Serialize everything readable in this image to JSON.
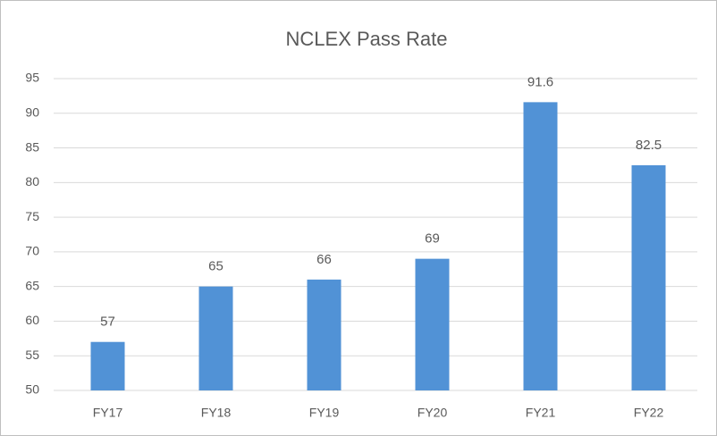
{
  "chart_data": {
    "type": "bar",
    "title": "NCLEX Pass Rate",
    "categories": [
      "FY17",
      "FY18",
      "FY19",
      "FY20",
      "FY21",
      "FY22"
    ],
    "values": [
      57,
      65,
      66,
      69,
      91.6,
      82.5
    ],
    "color": "#5192d6",
    "ylim": [
      50,
      95
    ],
    "yticks": [
      50,
      55,
      60,
      65,
      70,
      75,
      80,
      85,
      90,
      95
    ],
    "grid": true
  }
}
